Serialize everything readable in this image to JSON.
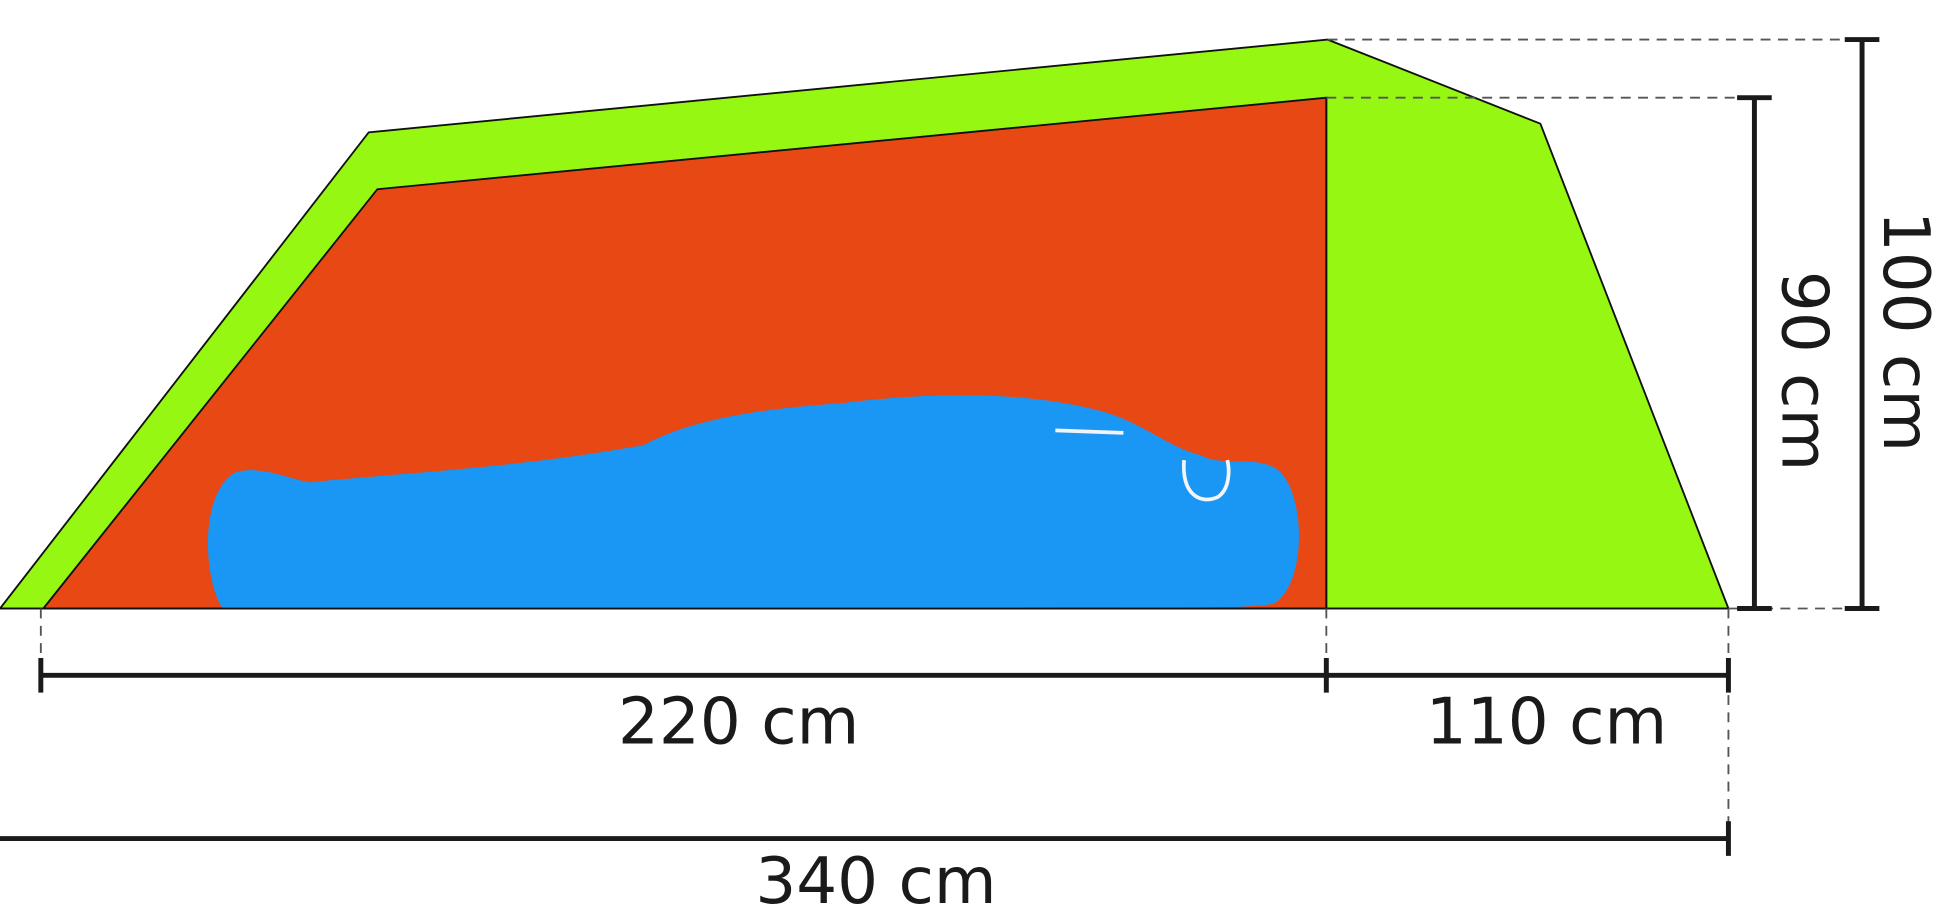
{
  "dimensions": {
    "inner_length": "220 cm",
    "vestibule_length": "110 cm",
    "total_length": "340 cm",
    "inner_height": "90 cm",
    "total_height": "100 cm"
  }
}
